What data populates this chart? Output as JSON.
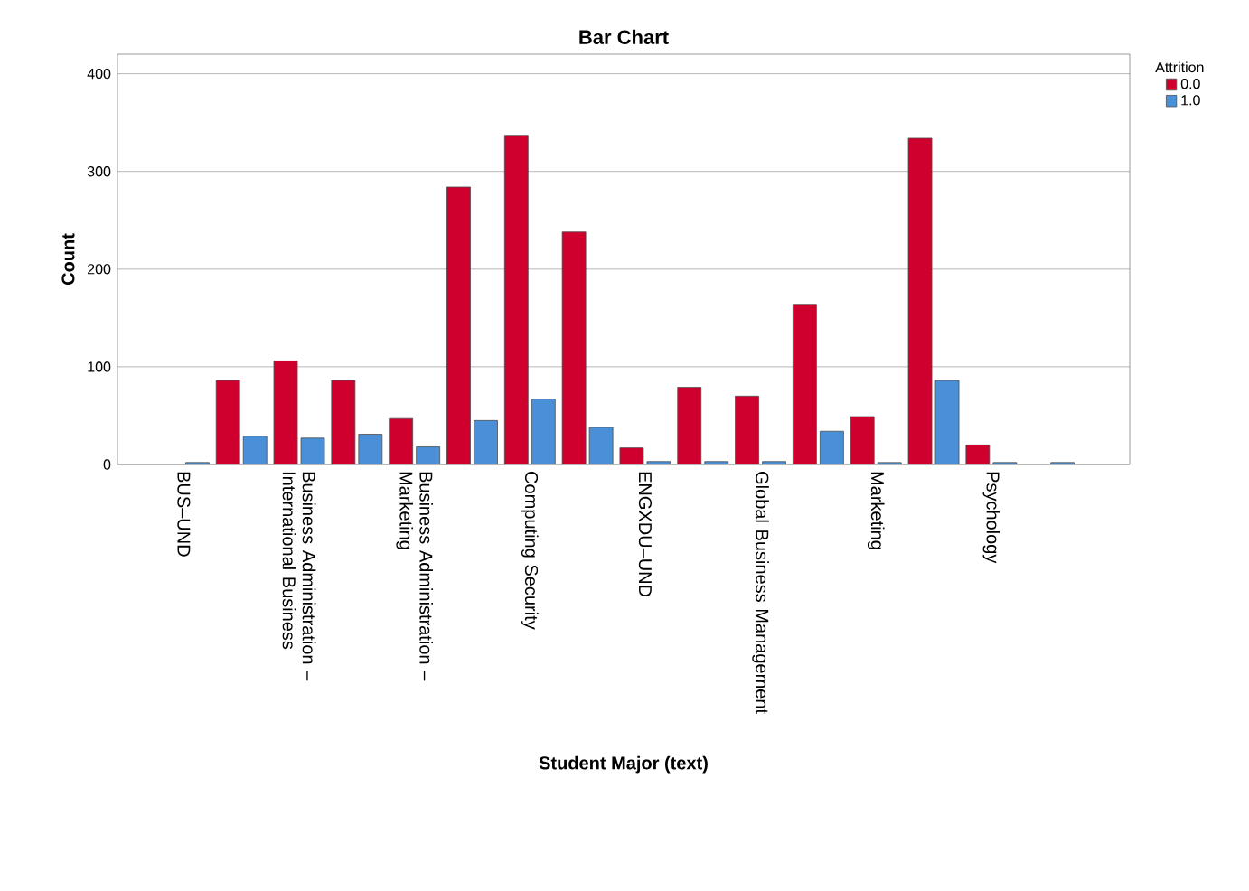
{
  "chart_data": {
    "type": "bar",
    "title": "Bar Chart",
    "xlabel": "Student Major (text)",
    "ylabel": "Count",
    "legend_title": "Attrition",
    "categories": [
      "BUS–UND",
      null,
      "Business Administration – International Business",
      null,
      "Business Administration – Marketing",
      null,
      "Computing Security",
      null,
      "ENGXDU–UND",
      null,
      "Global Business Management",
      null,
      "Marketing",
      null,
      "Psychology",
      null
    ],
    "series": [
      {
        "name": "0.0",
        "color": "#d0002e",
        "values": [
          null,
          86,
          106,
          86,
          47,
          284,
          337,
          238,
          17,
          79,
          70,
          164,
          49,
          334,
          20,
          null
        ]
      },
      {
        "name": "1.0",
        "color": "#4a90d9",
        "values": [
          2,
          29,
          27,
          31,
          18,
          45,
          67,
          38,
          3,
          3,
          3,
          34,
          2,
          86,
          2,
          2
        ]
      }
    ],
    "ylim": [
      0,
      420
    ],
    "yticks": [
      0,
      100,
      200,
      300,
      400
    ],
    "grid": "y",
    "legend": "top right"
  }
}
